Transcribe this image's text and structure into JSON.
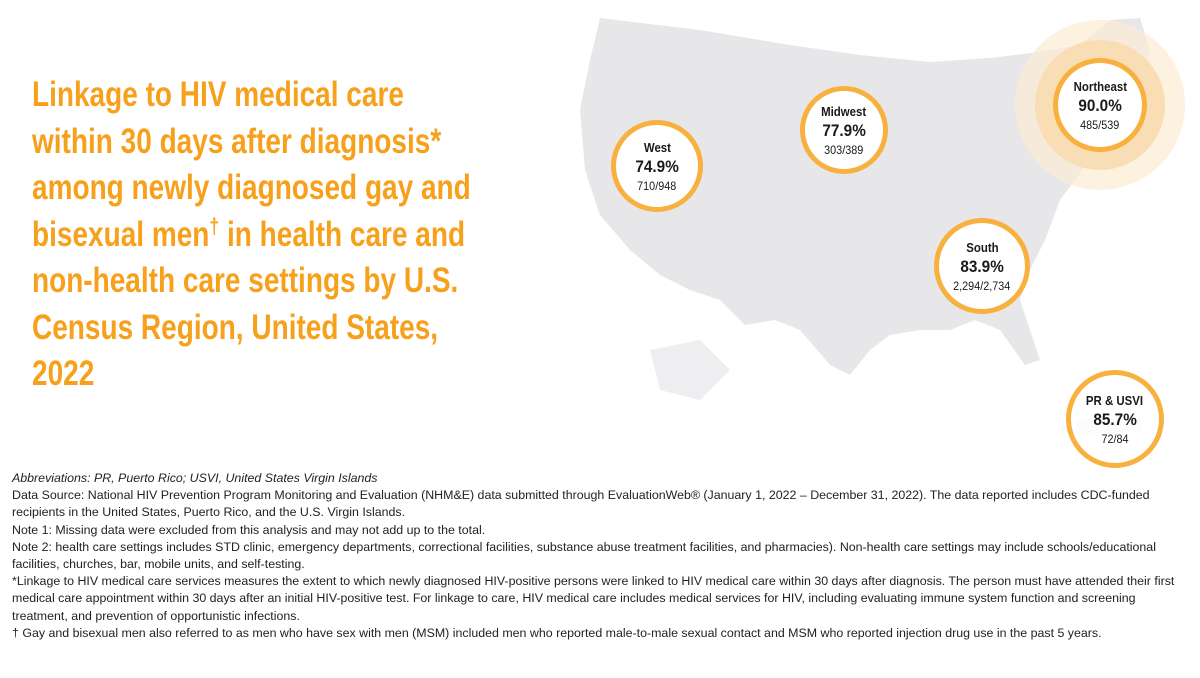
{
  "title_lines": [
    "Linkage to HIV medical care",
    "within 30 days after diagnosis*",
    "among newly diagnosed gay and",
    "bisexual men",
    "in health care and",
    "non-health care settings by U.S.",
    "Census Region, United States,",
    "2022"
  ],
  "title_dagger": "†",
  "colors": {
    "accent": "#F6A01C",
    "ring": "#F8B03F",
    "map": "#E6E6E9"
  },
  "chart_data": {
    "type": "map",
    "title": "Linkage to HIV medical care within 30 days after diagnosis* among newly diagnosed gay and bisexual men† in health care and non-health care settings by U.S. Census Region, United States, 2022",
    "regions": [
      {
        "name": "West",
        "percent": "74.9%",
        "fraction": "710/948",
        "value": 74.9
      },
      {
        "name": "Midwest",
        "percent": "77.9%",
        "fraction": "303/389",
        "value": 77.9
      },
      {
        "name": "Northeast",
        "percent": "90.0%",
        "fraction": "485/539",
        "value": 90.0,
        "highlighted": true
      },
      {
        "name": "South",
        "percent": "83.9%",
        "fraction": "2,294/2,734",
        "value": 83.9
      },
      {
        "name": "PR & USVI",
        "percent": "85.7%",
        "fraction": "72/84",
        "value": 85.7
      }
    ]
  },
  "notes": [
    "Abbreviations: PR, Puerto Rico; USVI, United States Virgin Islands",
    "Data Source: National HIV Prevention Program Monitoring and Evaluation (NHM&E) data submitted through EvaluationWeb® (January 1, 2022 – December 31, 2022). The data reported includes CDC-funded recipients in the United States, Puerto Rico, and the U.S. Virgin Islands.",
    "Note 1: Missing data were excluded from this analysis and may not add up to the total.",
    "Note 2: health care settings includes STD clinic, emergency departments, correctional facilities, substance abuse treatment facilities, and pharmacies). Non-health care settings may include schools/educational facilities, churches, bar, mobile units, and self-testing.",
    "*Linkage to HIV medical care services measures the extent to which newly diagnosed HIV-positive persons were linked to HIV medical care within 30 days after diagnosis. The person must have attended their first medical care appointment within 30 days after an initial HIV-positive test. For linkage to care, HIV medical care includes medical services for HIV, including evaluating immune system function and screening treatment, and prevention of opportunistic infections.",
    "† Gay and bisexual men also referred to as men who have sex with men (MSM) included men who reported male-to-male sexual contact and MSM who reported injection drug use in the past 5 years."
  ]
}
